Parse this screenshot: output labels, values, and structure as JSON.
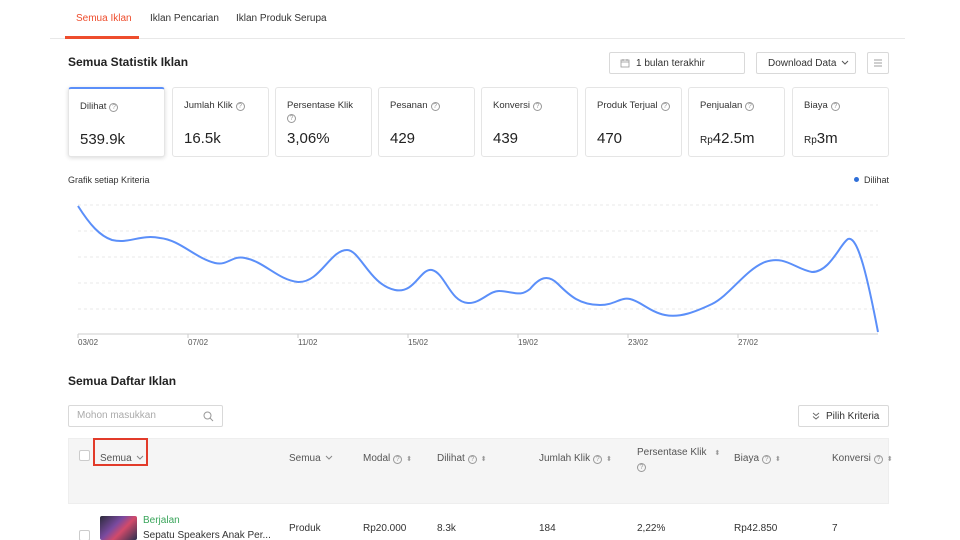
{
  "tabs": [
    {
      "label": "Semua Iklan",
      "active": true
    },
    {
      "label": "Iklan Pencarian",
      "active": false
    },
    {
      "label": "Iklan Produk Serupa",
      "active": false
    }
  ],
  "stats_section": {
    "title": "Semua Statistik Iklan",
    "date_filter": "1 bulan terakhir",
    "download_label": "Download Data"
  },
  "metrics": [
    {
      "label": "Dilihat",
      "value": "539.9k",
      "active": true
    },
    {
      "label": "Jumlah Klik",
      "value": "16.5k"
    },
    {
      "label": "Persentase Klik",
      "value": "3,06%"
    },
    {
      "label": "Pesanan",
      "value": "429"
    },
    {
      "label": "Konversi",
      "value": "439"
    },
    {
      "label": "Produk Terjual",
      "value": "470"
    },
    {
      "label": "Penjualan",
      "prefix": "Rp",
      "value": "42.5m"
    },
    {
      "label": "Biaya",
      "prefix": "Rp",
      "value": "3m"
    }
  ],
  "chart_label": "Grafik setiap Kriteria",
  "chart_data": {
    "type": "line",
    "x_ticks": [
      "03/02",
      "07/02",
      "11/02",
      "15/02",
      "19/02",
      "23/02",
      "27/02"
    ],
    "series": [
      {
        "name": "Dilihat",
        "color": "#5b8ff9"
      }
    ],
    "grid": true,
    "legend": "top-right"
  },
  "list_section": {
    "title": "Semua Daftar Iklan",
    "search_placeholder": "Mohon masukkan",
    "criteria_button": "Pilih Kriteria"
  },
  "table": {
    "headers": {
      "status": "Semua",
      "type": "Semua",
      "modal": "Modal",
      "dilihat": "Dilihat",
      "klik": "Jumlah Klik",
      "persen": "Persentase Klik",
      "biaya": "Biaya",
      "konversi": "Konversi"
    },
    "row": {
      "status": "Berjalan",
      "name": "Sepatu Speakers Anak Per...",
      "type": "Produk",
      "modal": "Rp20.000",
      "dilihat": "8.3k",
      "klik": "184",
      "persen": "2,22%",
      "biaya": "Rp42.850",
      "konversi": "7"
    }
  }
}
